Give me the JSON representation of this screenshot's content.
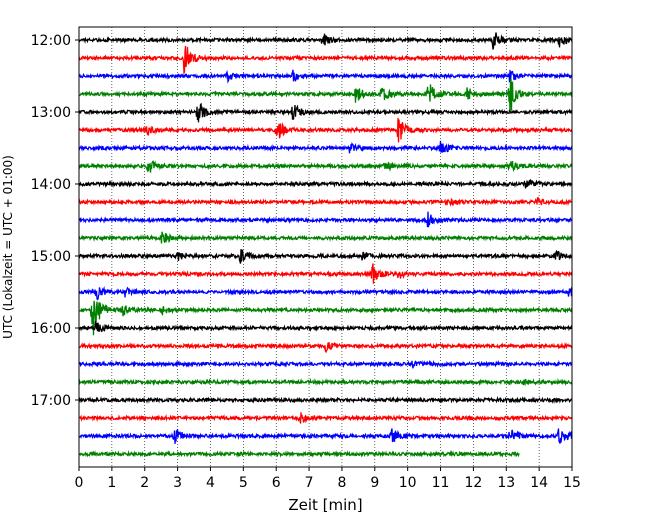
{
  "chart_data": {
    "type": "line",
    "title": "",
    "xlabel": "Zeit  [min]",
    "ylabel": "UTC (Lokalzeit = UTC + 01:00)",
    "xlim": [
      0,
      15
    ],
    "x_ticks": [
      "0",
      "1",
      "2",
      "3",
      "4",
      "5",
      "6",
      "7",
      "8",
      "9",
      "10",
      "11",
      "12",
      "13",
      "14",
      "15"
    ],
    "y_tick_labels": [
      "12:00",
      "13:00",
      "14:00",
      "15:00",
      "16:00",
      "17:00"
    ],
    "y_tick_rows": [
      0,
      4,
      8,
      12,
      16,
      20
    ],
    "grid": "vertical-dotted",
    "row_minutes": 15,
    "row_colors": [
      "#000000",
      "#ff0000",
      "#0000ff",
      "#008000"
    ],
    "rows": [
      {
        "start": "12:00",
        "end_min": 15,
        "events": [
          [
            7.4,
            7
          ],
          [
            12.6,
            10
          ],
          [
            14.6,
            7
          ]
        ]
      },
      {
        "start": "12:15",
        "end_min": 15,
        "events": [
          [
            3.2,
            18
          ]
        ]
      },
      {
        "start": "12:30",
        "end_min": 15,
        "events": [
          [
            4.5,
            5
          ],
          [
            6.5,
            6
          ],
          [
            13.1,
            6
          ]
        ]
      },
      {
        "start": "12:45",
        "end_min": 15,
        "events": [
          [
            8.4,
            9
          ],
          [
            9.2,
            9
          ],
          [
            10.6,
            14
          ],
          [
            11.8,
            7
          ],
          [
            13.1,
            22
          ]
        ]
      },
      {
        "start": "13:00",
        "end_min": 15,
        "events": [
          [
            3.6,
            13
          ],
          [
            6.5,
            10
          ]
        ]
      },
      {
        "start": "13:15",
        "end_min": 15,
        "events": [
          [
            2.0,
            5
          ],
          [
            6.0,
            11
          ],
          [
            9.7,
            14
          ]
        ]
      },
      {
        "start": "13:30",
        "end_min": 15,
        "events": [
          [
            8.2,
            5
          ],
          [
            11.0,
            9
          ]
        ]
      },
      {
        "start": "13:45",
        "end_min": 15,
        "events": [
          [
            2.1,
            8
          ],
          [
            9.3,
            5
          ],
          [
            13.1,
            6
          ]
        ]
      },
      {
        "start": "14:00",
        "end_min": 15,
        "events": [
          [
            13.6,
            6
          ]
        ]
      },
      {
        "start": "14:15",
        "end_min": 15,
        "events": [
          [
            11.2,
            4
          ],
          [
            13.9,
            4
          ]
        ]
      },
      {
        "start": "14:30",
        "end_min": 15,
        "events": [
          [
            10.6,
            8
          ]
        ]
      },
      {
        "start": "14:45",
        "end_min": 15,
        "events": [
          [
            2.5,
            7
          ]
        ]
      },
      {
        "start": "15:00",
        "end_min": 15,
        "events": [
          [
            3.0,
            5
          ],
          [
            4.9,
            7
          ],
          [
            8.6,
            5
          ],
          [
            14.5,
            5
          ]
        ]
      },
      {
        "start": "15:15",
        "end_min": 15,
        "events": [
          [
            8.9,
            13
          ],
          [
            9.7,
            5
          ]
        ]
      },
      {
        "start": "15:30",
        "end_min": 15,
        "events": [
          [
            0.5,
            9
          ],
          [
            1.4,
            4
          ],
          [
            14.9,
            5
          ]
        ]
      },
      {
        "start": "15:45",
        "end_min": 15,
        "events": [
          [
            0.4,
            30
          ],
          [
            1.3,
            6
          ],
          [
            2.5,
            4
          ]
        ]
      },
      {
        "start": "16:00",
        "end_min": 15,
        "events": [
          [
            0.5,
            6
          ]
        ]
      },
      {
        "start": "16:15",
        "end_min": 15,
        "events": [
          [
            7.5,
            5
          ]
        ]
      },
      {
        "start": "16:30",
        "end_min": 15,
        "events": [
          [
            10.1,
            4
          ]
        ]
      },
      {
        "start": "16:45",
        "end_min": 15,
        "events": [
          [
            13.5,
            3
          ]
        ]
      },
      {
        "start": "17:00",
        "end_min": 15,
        "events": []
      },
      {
        "start": "17:15",
        "end_min": 15,
        "events": [
          [
            6.7,
            6
          ]
        ]
      },
      {
        "start": "17:30",
        "end_min": 15,
        "events": [
          [
            2.9,
            10
          ],
          [
            9.5,
            8
          ],
          [
            13.1,
            9
          ],
          [
            14.6,
            11
          ]
        ]
      },
      {
        "start": "17:45",
        "end_min": 13.4,
        "events": []
      }
    ]
  }
}
